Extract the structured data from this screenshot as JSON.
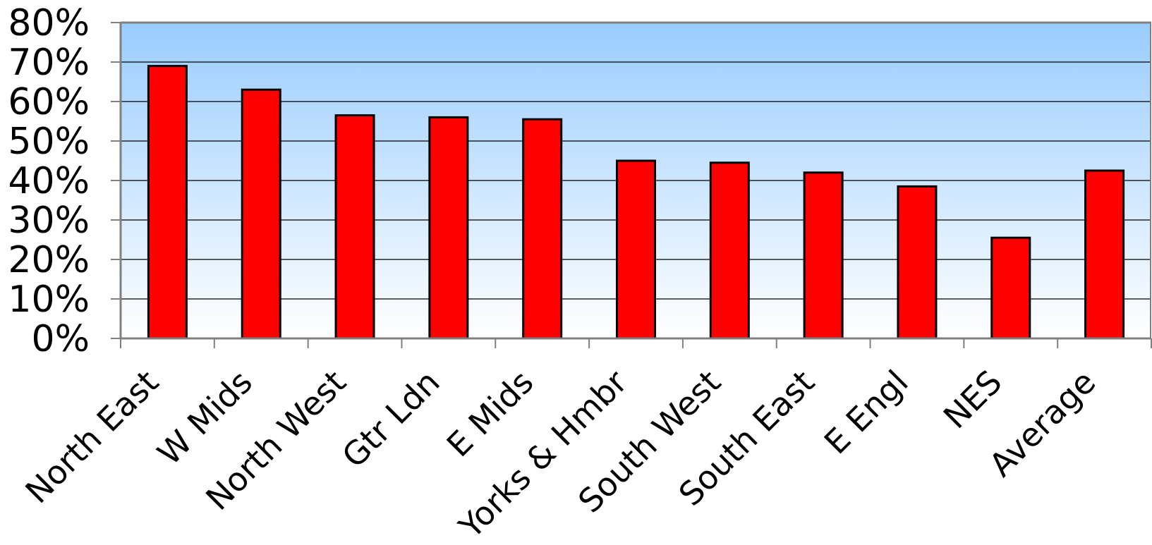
{
  "chart_data": {
    "type": "bar",
    "title": "",
    "xlabel": "",
    "ylabel": "",
    "categories": [
      "North East",
      "W Mids",
      "North West",
      "Gtr Ldn",
      "E Mids",
      "Yorks & Hmbr",
      "South West",
      "South East",
      "E Engl",
      "NES",
      "Average"
    ],
    "values": [
      69,
      63,
      56.5,
      56,
      55.5,
      45,
      44.5,
      42,
      38.5,
      25.5,
      42.5
    ],
    "ylim": [
      0,
      80
    ],
    "yticks": [
      "0%",
      "10%",
      "20%",
      "30%",
      "40%",
      "50%",
      "60%",
      "70%",
      "80%"
    ],
    "grid": true,
    "legend": "none",
    "colors": {
      "bar": "#ff0000",
      "bar_outline": "#000000",
      "plot_bg_top": "#99ccff",
      "plot_bg_bottom": "#ffffff",
      "gridline": "#000000"
    }
  }
}
